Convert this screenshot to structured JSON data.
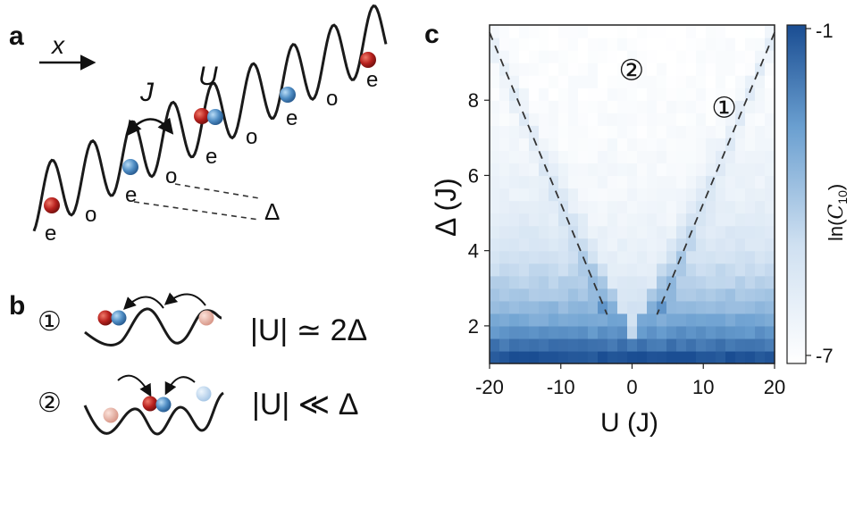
{
  "panels": {
    "a": {
      "label": "a",
      "x_label": "x",
      "J_label": "J",
      "U_label": "U",
      "delta_label": "Δ",
      "site_labels": [
        "e",
        "o",
        "e",
        "o",
        "e",
        "o",
        "e",
        "o",
        "e"
      ]
    },
    "b": {
      "label": "b",
      "rows": [
        {
          "marker": "①",
          "formula": "|U| ≃ 2Δ"
        },
        {
          "marker": "②",
          "formula": "|U| ≪ Δ"
        }
      ]
    },
    "c": {
      "label": "c",
      "region_markers": [
        "②",
        "①"
      ]
    }
  },
  "colors": {
    "red_atom": "#b8211e",
    "blue_atom": "#4f8dc4",
    "pale_red_atom": "#e8b4a6",
    "pale_blue_atom": "#bcd6ee",
    "heatmap_low": "#ffffff",
    "heatmap_high": "#1a4d92"
  },
  "chart_data": {
    "type": "heatmap",
    "title": "",
    "xlabel": "U (J)",
    "ylabel": "Δ (J)",
    "xlim": [
      -20,
      20
    ],
    "ylim": [
      1,
      10
    ],
    "x_ticks": [
      "-20",
      "-10",
      "0",
      "10",
      "20"
    ],
    "y_ticks": [
      "2",
      "4",
      "6",
      "8"
    ],
    "colorbar": {
      "label": "ln(C10)",
      "label_main": "ln(",
      "label_symbol": "C",
      "label_sub": "10",
      "label_close": ")",
      "range": [
        -7,
        -1
      ],
      "tick_labels": [
        "-1",
        "-7"
      ]
    },
    "boundary_lines": [
      {
        "name": "left",
        "points": [
          [
            -20,
            9.8
          ],
          [
            -3.5,
            2.3
          ]
        ]
      },
      {
        "name": "right",
        "points": [
          [
            20,
            9.8
          ],
          [
            3.5,
            2.3
          ]
        ]
      }
    ],
    "region_labels": [
      {
        "marker": "②",
        "U": 0,
        "Delta": 8.8
      },
      {
        "marker": "①",
        "U": 13,
        "Delta": 7.8
      }
    ]
  }
}
